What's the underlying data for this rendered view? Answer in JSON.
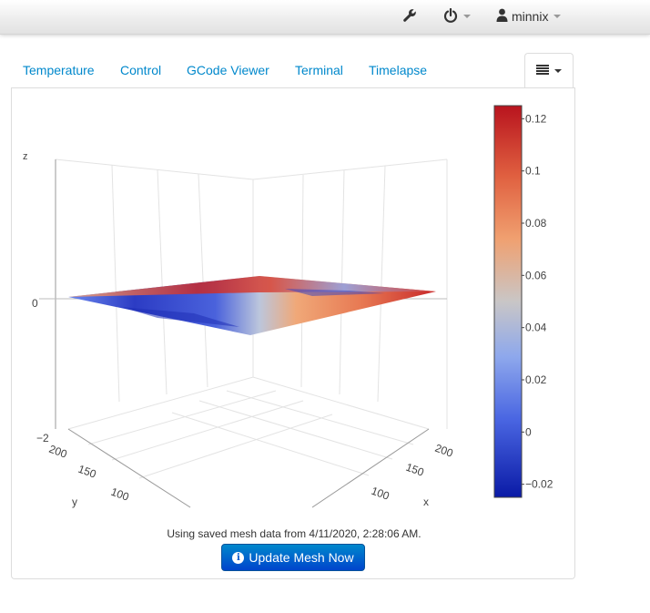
{
  "navbar": {
    "wrench_icon": "wrench-icon",
    "power_icon": "power-icon",
    "user_icon": "user-icon",
    "username": "minnix"
  },
  "tabs": [
    {
      "label": "Temperature"
    },
    {
      "label": "Control"
    },
    {
      "label": "GCode Viewer"
    },
    {
      "label": "Terminal"
    },
    {
      "label": "Timelapse"
    }
  ],
  "tab_menu_icon": "list-icon",
  "bed_mesh": {
    "status_text": "Using saved mesh data from 4/11/2020, 2:28:06 AM.",
    "update_button_label": "Update Mesh Now",
    "update_button_icon": "info-circle-icon",
    "button_color": "#0074cc"
  },
  "chart_data": {
    "type": "surface",
    "z_axis": {
      "label": "z",
      "ticks": [
        "0",
        "−2"
      ]
    },
    "x_axis": {
      "label": "x",
      "ticks": [
        "100",
        "150",
        "200"
      ]
    },
    "y_axis": {
      "label": "y",
      "ticks": [
        "100",
        "150",
        "200"
      ]
    },
    "colorbar": {
      "ticks": [
        "0.12",
        "0.1",
        "0.08",
        "0.06",
        "0.04",
        "0.02",
        "0",
        "−0.02"
      ],
      "range": [
        -0.025,
        0.125
      ],
      "colorscale": [
        "#0a1aa6",
        "#3d55d9",
        "#6f8ff5",
        "#b9c3d6",
        "#f0a070",
        "#e06040",
        "#b8141e"
      ]
    }
  }
}
